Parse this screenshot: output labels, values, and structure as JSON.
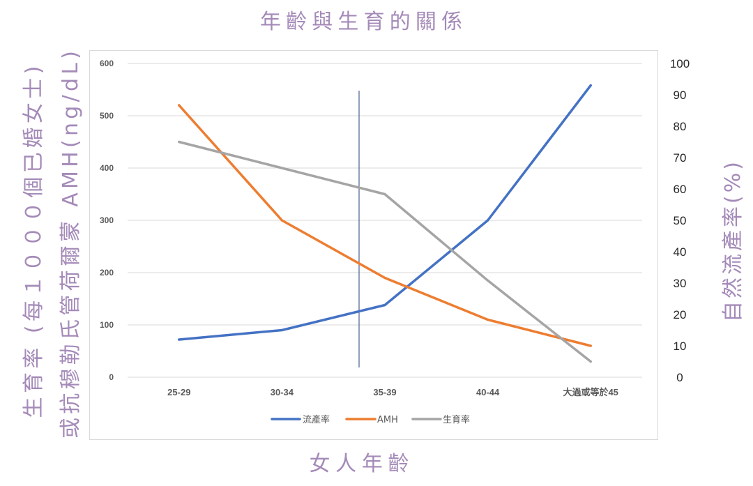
{
  "colors": {
    "label_purple": "#a48ab8",
    "axis_text": "#595959",
    "gridline": "#d9d9d9",
    "reference_line": "#4a6190"
  },
  "chart_data": {
    "type": "line",
    "title": "年齡與生育的關係",
    "xlabel": "女人年齡",
    "ylabel": [
      "生育率 (每１０００個已婚女士)",
      "或抗穆勒氏管荷爾蒙 AMH(ng/dL)"
    ],
    "y2label": "自然流產率(%)",
    "categories": [
      "25-29",
      "30-34",
      "35-39",
      "40-44",
      "大過或等於45"
    ],
    "ylim": [
      0,
      600
    ],
    "yticks": [
      0,
      100,
      200,
      300,
      400,
      500,
      600
    ],
    "y2lim": [
      0,
      100
    ],
    "y2ticks": [
      0,
      10,
      20,
      30,
      40,
      50,
      60,
      70,
      80,
      90,
      100
    ],
    "grid": true,
    "legend": "bottom",
    "series": [
      {
        "name": "流產率",
        "axis": "right",
        "color": "#4472c4",
        "values": [
          12,
          15,
          23,
          50,
          93
        ]
      },
      {
        "name": "AMH",
        "axis": "left",
        "color": "#ed7d31",
        "values": [
          520,
          300,
          190,
          110,
          60
        ]
      },
      {
        "name": "生育率",
        "axis": "left",
        "color": "#a5a5a5",
        "values": [
          450,
          400,
          350,
          185,
          30
        ]
      }
    ]
  }
}
